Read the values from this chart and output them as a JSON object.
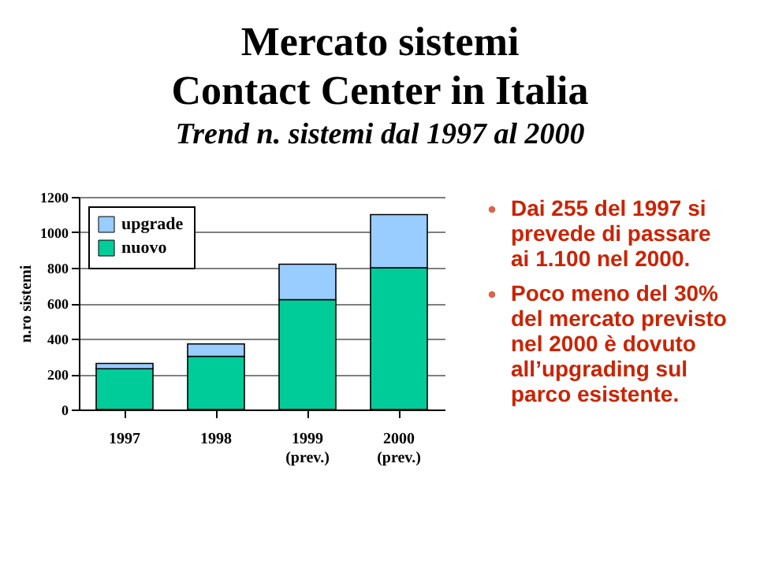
{
  "chart_data": {
    "type": "bar",
    "stacked": true,
    "title": "Mercato sistemi\nContact Center in Italia",
    "subtitle": "Trend  n. sistemi  dal 1997  al 2000",
    "ylabel": "n.ro sistemi",
    "categories": [
      "1997",
      "1998",
      "1999 (prev.)",
      "2000 (prev.)"
    ],
    "series": [
      {
        "name": "nuovo",
        "color": "#00cc99",
        "values": [
          230,
          300,
          620,
          800
        ]
      },
      {
        "name": "upgrade",
        "color": "#99ccff",
        "values": [
          30,
          70,
          200,
          300
        ]
      }
    ],
    "ylim": [
      0,
      1200
    ],
    "yticks": [
      0,
      200,
      400,
      600,
      800,
      1000,
      1200
    ],
    "grid": "y",
    "legend": "top left",
    "annotations": [
      "Dai 255 del 1997 si prevede di passare ai 1.100 nel 2000.",
      "Poco meno del 30% del mercato previsto nel 2000 è dovuto all’upgrading sul parco esistente."
    ]
  }
}
